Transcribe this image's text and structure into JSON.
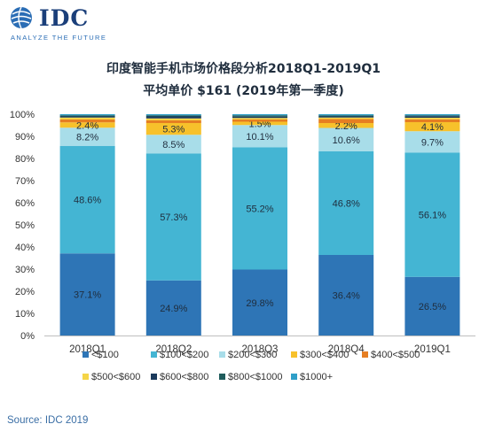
{
  "brand": {
    "logo_text": "IDC",
    "tagline": "ANALYZE THE FUTURE"
  },
  "chart_data": {
    "type": "bar",
    "stacked": true,
    "title": "印度智能手机市场价格段分析2018Q1-2019Q1",
    "subtitle": "平均单价 $161 (2019年第一季度)",
    "categories": [
      "2018Q1",
      "2018Q2",
      "2018Q3",
      "2018Q4",
      "2019Q1"
    ],
    "y_ticks": [
      "0%",
      "10%",
      "20%",
      "30%",
      "40%",
      "50%",
      "60%",
      "70%",
      "80%",
      "90%",
      "100%"
    ],
    "ylim": [
      0,
      100
    ],
    "grid": false,
    "legend_position": "bottom",
    "series": [
      {
        "name": "<$100",
        "color": "#2e75b6",
        "values": [
          37.1,
          24.9,
          29.8,
          36.4,
          26.5
        ],
        "labels": [
          "37.1%",
          "24.9%",
          "29.8%",
          "36.4%",
          "26.5%"
        ]
      },
      {
        "name": "$100<$200",
        "color": "#44b5d3",
        "values": [
          48.6,
          57.3,
          55.2,
          46.8,
          56.1
        ],
        "labels": [
          "48.6%",
          "57.3%",
          "55.2%",
          "46.8%",
          "56.1%"
        ]
      },
      {
        "name": "$200<$300",
        "color": "#a8dde9",
        "values": [
          8.2,
          8.5,
          10.1,
          10.6,
          9.7
        ],
        "labels": [
          "8.2%",
          "8.5%",
          "10.1%",
          "10.6%",
          "9.7%"
        ]
      },
      {
        "name": "$300<$400",
        "color": "#f7c12b",
        "values": [
          2.4,
          5.3,
          1.5,
          2.2,
          4.1
        ],
        "labels": [
          "2.4%",
          "5.3%",
          "1.5%",
          "2.2%",
          "4.1%"
        ]
      },
      {
        "name": "$400<$500",
        "color": "#e67e22",
        "values": [
          1.3,
          1.2,
          1.0,
          1.8,
          1.3
        ],
        "labels": []
      },
      {
        "name": "$500<$600",
        "color": "#f5d547",
        "values": [
          0.9,
          0.9,
          0.7,
          0.7,
          0.7
        ],
        "labels": []
      },
      {
        "name": "$600<$800",
        "color": "#1b3a5c",
        "values": [
          0.5,
          0.9,
          0.6,
          0.5,
          0.7
        ],
        "labels": []
      },
      {
        "name": "$800<$1000",
        "color": "#1f5c5c",
        "values": [
          0.5,
          0.5,
          0.6,
          0.5,
          0.4
        ],
        "labels": []
      },
      {
        "name": "$1000+",
        "color": "#2f9fc8",
        "values": [
          0.5,
          0.5,
          0.5,
          0.5,
          0.5
        ],
        "labels": []
      }
    ]
  },
  "footer": {
    "source": "Source: IDC 2019"
  }
}
